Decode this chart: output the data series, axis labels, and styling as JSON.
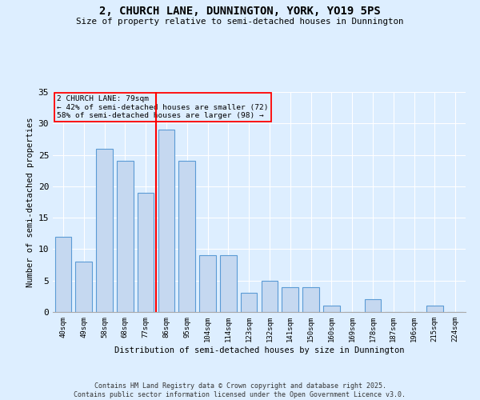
{
  "title_line1": "2, CHURCH LANE, DUNNINGTON, YORK, YO19 5PS",
  "title_line2": "Size of property relative to semi-detached houses in Dunnington",
  "xlabel": "Distribution of semi-detached houses by size in Dunnington",
  "ylabel": "Number of semi-detached properties",
  "categories": [
    "40sqm",
    "49sqm",
    "58sqm",
    "68sqm",
    "77sqm",
    "86sqm",
    "95sqm",
    "104sqm",
    "114sqm",
    "123sqm",
    "132sqm",
    "141sqm",
    "150sqm",
    "160sqm",
    "169sqm",
    "178sqm",
    "187sqm",
    "196sqm",
    "215sqm",
    "224sqm"
  ],
  "values": [
    12,
    8,
    26,
    24,
    19,
    29,
    24,
    9,
    9,
    3,
    5,
    4,
    4,
    1,
    0,
    2,
    0,
    0,
    1,
    0
  ],
  "bar_color": "#c5d8f0",
  "bar_edge_color": "#5b9bd5",
  "vline_x": 4.5,
  "vline_color": "red",
  "annotation_title": "2 CHURCH LANE: 79sqm",
  "annotation_line1": "← 42% of semi-detached houses are smaller (72)",
  "annotation_line2": "58% of semi-detached houses are larger (98) →",
  "annotation_box_color": "red",
  "ylim": [
    0,
    35
  ],
  "yticks": [
    0,
    5,
    10,
    15,
    20,
    25,
    30,
    35
  ],
  "footer": "Contains HM Land Registry data © Crown copyright and database right 2025.\nContains public sector information licensed under the Open Government Licence v3.0.",
  "bg_color": "#ddeeff",
  "plot_bg_color": "#ddeeff"
}
